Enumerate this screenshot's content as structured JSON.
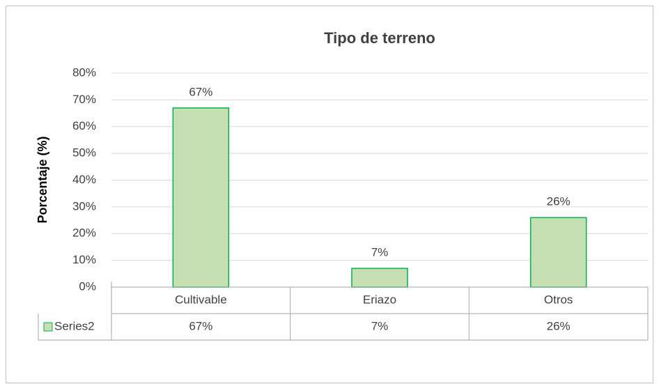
{
  "chart_data": {
    "type": "bar",
    "title": "Tipo de terreno",
    "y_label": "Porcentaje (%)",
    "categories": [
      "Cultivable",
      "Eriazo",
      "Otros"
    ],
    "series": [
      {
        "name": "Series2",
        "color": "#c6e0b4",
        "edge_color": "#00b050",
        "values": [
          67,
          7,
          26
        ],
        "value_labels": [
          "67%",
          "7%",
          "26%"
        ]
      }
    ],
    "ylim": [
      0,
      80
    ],
    "yticks": [
      {
        "value": 0,
        "label": "0%"
      },
      {
        "value": 10,
        "label": "10%"
      },
      {
        "value": 20,
        "label": "20%"
      },
      {
        "value": 30,
        "label": "30%"
      },
      {
        "value": 40,
        "label": "40%"
      },
      {
        "value": 50,
        "label": "50%"
      },
      {
        "value": 60,
        "label": "60%"
      },
      {
        "value": 70,
        "label": "70%"
      },
      {
        "value": 80,
        "label": "80%"
      }
    ],
    "grid": true,
    "data_table": true
  }
}
